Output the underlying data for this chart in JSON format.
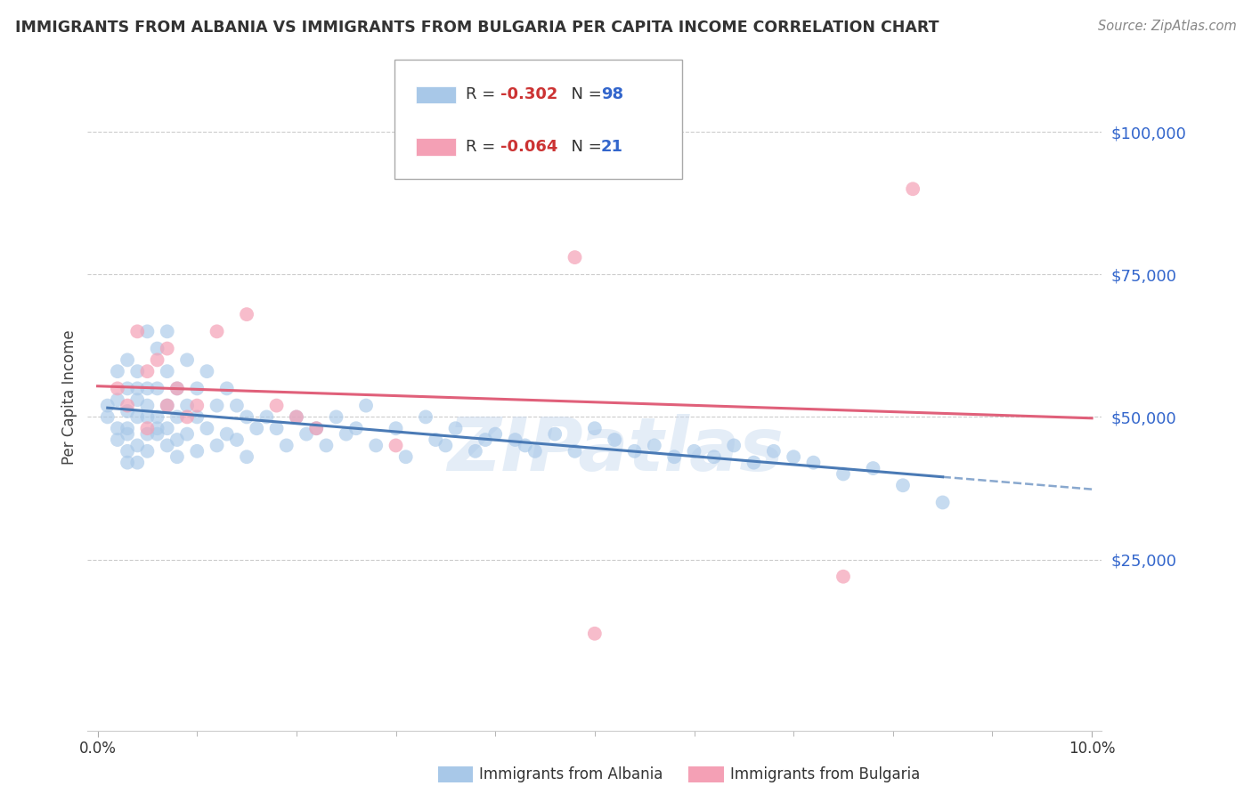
{
  "title": "IMMIGRANTS FROM ALBANIA VS IMMIGRANTS FROM BULGARIA PER CAPITA INCOME CORRELATION CHART",
  "source": "Source: ZipAtlas.com",
  "ylabel": "Per Capita Income",
  "y_ticks": [
    25000,
    50000,
    75000,
    100000
  ],
  "y_tick_labels": [
    "$25,000",
    "$50,000",
    "$75,000",
    "$100,000"
  ],
  "xlim": [
    -0.001,
    0.101
  ],
  "ylim": [
    -5000,
    112000
  ],
  "color_albania": "#a8c8e8",
  "color_bulgaria": "#f4a0b5",
  "line_color_albania": "#4a7ab5",
  "line_color_bulgaria": "#e0607a",
  "watermark": "ZIPatlas",
  "R_albania": "-0.302",
  "N_albania": "98",
  "R_bulgaria": "-0.064",
  "N_bulgaria": "21",
  "albania_x": [
    0.001,
    0.001,
    0.002,
    0.002,
    0.002,
    0.002,
    0.003,
    0.003,
    0.003,
    0.003,
    0.003,
    0.003,
    0.003,
    0.004,
    0.004,
    0.004,
    0.004,
    0.004,
    0.004,
    0.005,
    0.005,
    0.005,
    0.005,
    0.005,
    0.005,
    0.006,
    0.006,
    0.006,
    0.006,
    0.006,
    0.007,
    0.007,
    0.007,
    0.007,
    0.007,
    0.008,
    0.008,
    0.008,
    0.008,
    0.009,
    0.009,
    0.009,
    0.01,
    0.01,
    0.01,
    0.011,
    0.011,
    0.012,
    0.012,
    0.013,
    0.013,
    0.014,
    0.014,
    0.015,
    0.015,
    0.016,
    0.017,
    0.018,
    0.019,
    0.02,
    0.021,
    0.022,
    0.023,
    0.024,
    0.025,
    0.026,
    0.027,
    0.028,
    0.03,
    0.031,
    0.033,
    0.034,
    0.035,
    0.036,
    0.038,
    0.039,
    0.04,
    0.042,
    0.043,
    0.044,
    0.046,
    0.048,
    0.05,
    0.052,
    0.054,
    0.056,
    0.058,
    0.06,
    0.062,
    0.064,
    0.066,
    0.068,
    0.07,
    0.072,
    0.075,
    0.078,
    0.081,
    0.085
  ],
  "albania_y": [
    50000,
    52000,
    48000,
    53000,
    46000,
    58000,
    48000,
    51000,
    55000,
    42000,
    60000,
    47000,
    44000,
    53000,
    50000,
    45000,
    58000,
    55000,
    42000,
    50000,
    65000,
    47000,
    55000,
    52000,
    44000,
    62000,
    50000,
    47000,
    55000,
    48000,
    65000,
    58000,
    52000,
    48000,
    45000,
    55000,
    50000,
    46000,
    43000,
    60000,
    52000,
    47000,
    55000,
    50000,
    44000,
    58000,
    48000,
    52000,
    45000,
    55000,
    47000,
    52000,
    46000,
    50000,
    43000,
    48000,
    50000,
    48000,
    45000,
    50000,
    47000,
    48000,
    45000,
    50000,
    47000,
    48000,
    52000,
    45000,
    48000,
    43000,
    50000,
    46000,
    45000,
    48000,
    44000,
    46000,
    47000,
    46000,
    45000,
    44000,
    47000,
    44000,
    48000,
    46000,
    44000,
    45000,
    43000,
    44000,
    43000,
    45000,
    42000,
    44000,
    43000,
    42000,
    40000,
    41000,
    38000,
    35000
  ],
  "bulgaria_x": [
    0.002,
    0.003,
    0.004,
    0.005,
    0.005,
    0.006,
    0.007,
    0.007,
    0.008,
    0.009,
    0.01,
    0.012,
    0.015,
    0.018,
    0.02,
    0.022,
    0.03,
    0.048,
    0.05,
    0.075,
    0.082
  ],
  "bulgaria_y": [
    55000,
    52000,
    65000,
    58000,
    48000,
    60000,
    62000,
    52000,
    55000,
    50000,
    52000,
    65000,
    68000,
    52000,
    50000,
    48000,
    45000,
    78000,
    12000,
    22000,
    90000
  ]
}
